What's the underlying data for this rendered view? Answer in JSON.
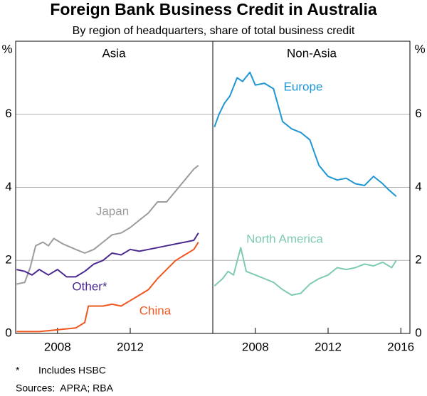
{
  "title": "Foreign Bank Business Credit in Australia",
  "subtitle": "By region of headquarters, share of total business credit",
  "footnote": {
    "marker": "*",
    "text": "Includes HSBC"
  },
  "sources": "Sources:  APRA; RBA",
  "chart_data": [
    {
      "type": "line",
      "panel_title": "Asia",
      "y_unit": "%",
      "xlim": [
        2005.7,
        2016.5
      ],
      "xticks": [
        2008,
        2012
      ],
      "ylim": [
        0,
        8
      ],
      "yticks": [
        0,
        2,
        4,
        6
      ],
      "grid": true,
      "series": [
        {
          "name": "Japan",
          "color": "#9c9c9c",
          "x": [
            2005.75,
            2006.2,
            2006.5,
            2006.8,
            2007.2,
            2007.5,
            2007.8,
            2008.3,
            2009,
            2009.5,
            2010,
            2010.5,
            2011,
            2011.5,
            2012,
            2012.5,
            2013,
            2013.5,
            2014,
            2014.5,
            2015,
            2015.5,
            2015.75
          ],
          "values": [
            1.35,
            1.4,
            1.8,
            2.4,
            2.5,
            2.4,
            2.6,
            2.45,
            2.3,
            2.2,
            2.3,
            2.5,
            2.7,
            2.75,
            2.9,
            3.1,
            3.3,
            3.6,
            3.6,
            3.9,
            4.2,
            4.5,
            4.6
          ]
        },
        {
          "name": "Other*",
          "color": "#4b2a8f",
          "x": [
            2005.75,
            2006.2,
            2006.6,
            2007,
            2007.5,
            2008,
            2008.5,
            2009,
            2009.5,
            2010,
            2010.5,
            2011,
            2011.5,
            2012,
            2012.5,
            2013,
            2013.5,
            2014,
            2014.5,
            2015,
            2015.5,
            2015.75
          ],
          "values": [
            1.75,
            1.7,
            1.6,
            1.75,
            1.6,
            1.75,
            1.55,
            1.55,
            1.7,
            1.9,
            2.0,
            2.2,
            2.15,
            2.3,
            2.25,
            2.3,
            2.35,
            2.4,
            2.45,
            2.5,
            2.55,
            2.75
          ]
        },
        {
          "name": "China",
          "color": "#f0561f",
          "x": [
            2005.75,
            2007,
            2008,
            2009,
            2009.5,
            2009.7,
            2010.5,
            2011,
            2011.5,
            2012,
            2012.5,
            2013,
            2013.5,
            2014,
            2014.5,
            2015,
            2015.5,
            2015.75
          ],
          "values": [
            0.05,
            0.05,
            0.1,
            0.15,
            0.3,
            0.75,
            0.75,
            0.8,
            0.75,
            0.9,
            1.05,
            1.2,
            1.5,
            1.75,
            2.0,
            2.15,
            2.3,
            2.5
          ]
        }
      ]
    },
    {
      "type": "line",
      "panel_title": "Non-Asia",
      "y_unit": "%",
      "xlim": [
        2005.7,
        2016.5
      ],
      "xticks": [
        2008,
        2012,
        2016
      ],
      "ylim": [
        0,
        8
      ],
      "yticks": [
        0,
        2,
        4,
        6
      ],
      "grid": true,
      "series": [
        {
          "name": "Europe",
          "color": "#1f96d4",
          "x": [
            2005.75,
            2006,
            2006.3,
            2006.6,
            2007,
            2007.3,
            2007.7,
            2008,
            2008.5,
            2009,
            2009.5,
            2010,
            2010.5,
            2011,
            2011.5,
            2012,
            2012.5,
            2013,
            2013.5,
            2014,
            2014.5,
            2015,
            2015.3,
            2015.75
          ],
          "values": [
            5.65,
            6.0,
            6.3,
            6.5,
            7.0,
            6.9,
            7.15,
            6.8,
            6.85,
            6.7,
            5.8,
            5.6,
            5.5,
            5.3,
            4.6,
            4.3,
            4.2,
            4.25,
            4.1,
            4.05,
            4.3,
            4.1,
            3.95,
            3.75
          ]
        },
        {
          "name": "North America",
          "color": "#7ecbb1",
          "x": [
            2005.75,
            2006.2,
            2006.5,
            2006.8,
            2007.2,
            2007.5,
            2008,
            2008.5,
            2009,
            2009.5,
            2010,
            2010.5,
            2011,
            2011.5,
            2012,
            2012.5,
            2013,
            2013.5,
            2014,
            2014.5,
            2015,
            2015.5,
            2015.75
          ],
          "values": [
            1.3,
            1.5,
            1.7,
            1.6,
            2.35,
            1.7,
            1.6,
            1.5,
            1.4,
            1.2,
            1.05,
            1.1,
            1.35,
            1.5,
            1.6,
            1.8,
            1.75,
            1.8,
            1.9,
            1.85,
            1.95,
            1.8,
            2.0
          ]
        }
      ]
    }
  ]
}
